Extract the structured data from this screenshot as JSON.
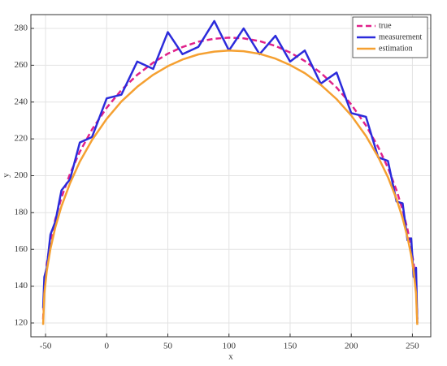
{
  "chart_data": {
    "type": "line",
    "xlabel": "x",
    "ylabel": "y",
    "x": [
      -52,
      -51,
      -49,
      -46,
      -42,
      -37,
      -30,
      -22,
      -12,
      0,
      12,
      25,
      38,
      50,
      62,
      75,
      88,
      100,
      112,
      125,
      138,
      150,
      162,
      175,
      188,
      200,
      212,
      222,
      230,
      237,
      242,
      246,
      249,
      251,
      253,
      254
    ],
    "series": [
      {
        "name": "true",
        "color": "#e0218a",
        "dash": true,
        "values": [
          122,
          139.5,
          152.1,
          164.4,
          176.4,
          188.1,
          201.0,
          213.0,
          225.1,
          236.9,
          246.5,
          254.8,
          261.4,
          266.3,
          269.9,
          272.8,
          274.4,
          275,
          274.6,
          273.1,
          270.5,
          266.9,
          262.3,
          255.9,
          247.9,
          238.7,
          227.3,
          215.6,
          204.3,
          192.1,
          181.4,
          170.8,
          160.8,
          152.1,
          139.5,
          122
        ]
      },
      {
        "name": "measurement",
        "color": "#2b2bdb",
        "dash": false,
        "values": [
          128,
          145,
          150,
          168,
          175,
          192,
          198,
          218,
          221,
          242,
          244,
          262,
          258,
          278,
          266,
          270,
          284,
          268,
          280,
          266,
          276,
          262,
          268,
          250,
          256,
          234,
          232,
          210,
          208,
          186,
          185,
          165,
          166,
          145,
          150,
          120
        ]
      },
      {
        "name": "estimation",
        "color": "#f5a031",
        "dash": false,
        "values": [
          119,
          136.0,
          148.3,
          160.3,
          172.0,
          183.4,
          195.9,
          207.6,
          219.4,
          230.9,
          240.3,
          248.3,
          254.8,
          259.5,
          263.1,
          265.9,
          267.4,
          268.0,
          267.6,
          266.2,
          263.6,
          260.1,
          255.7,
          249.4,
          241.6,
          232.7,
          221.6,
          210.2,
          199.2,
          187.3,
          176.9,
          166.5,
          156.8,
          148.3,
          136.0,
          119
        ]
      }
    ],
    "xlim": [
      -62,
      265
    ],
    "ylim": [
      112.5,
      287.5
    ],
    "xticks": [
      -50,
      0,
      50,
      100,
      150,
      200,
      250
    ],
    "yticks": [
      120,
      140,
      160,
      180,
      200,
      220,
      240,
      260,
      280
    ],
    "grid": true,
    "legend": "top-right"
  }
}
